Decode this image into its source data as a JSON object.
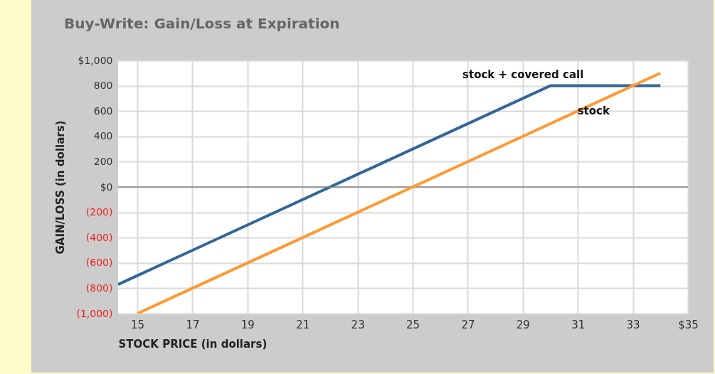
{
  "chart_data": {
    "type": "line",
    "title": "Buy-Write: Gain/Loss at Expiration",
    "xlabel": "STOCK PRICE (in dollars)",
    "ylabel": "GAIN/LOSS (in dollars)",
    "series": [
      {
        "name": "stock + covered call",
        "color": "#336699",
        "x": [
          14.3,
          30,
          34
        ],
        "values": [
          -770,
          800,
          800
        ]
      },
      {
        "name": "stock",
        "color": "#ff9933",
        "x": [
          15,
          34
        ],
        "values": [
          -1000,
          900
        ]
      }
    ],
    "xlim": [
      14.3,
      35
    ],
    "xticks": [
      15,
      17,
      19,
      21,
      23,
      25,
      27,
      29,
      31,
      33,
      {
        "value": 35,
        "label": "$35"
      }
    ],
    "ylim": [
      -1000,
      1000
    ],
    "yticks": [
      {
        "value": 1000,
        "label": "$1,000"
      },
      800,
      600,
      400,
      200,
      {
        "value": 0,
        "label": "$0"
      },
      {
        "value": -200,
        "label": "(200)"
      },
      {
        "value": -400,
        "label": "(400)"
      },
      {
        "value": -600,
        "label": "(600)"
      },
      {
        "value": -800,
        "label": "(800)"
      },
      {
        "value": -1000,
        "label": "(1,000)"
      }
    ],
    "ref_lines": [
      {
        "axis": "y",
        "value": 0,
        "color": "#808080"
      }
    ],
    "grid": true,
    "marker": "none",
    "line_style": "solid"
  }
}
